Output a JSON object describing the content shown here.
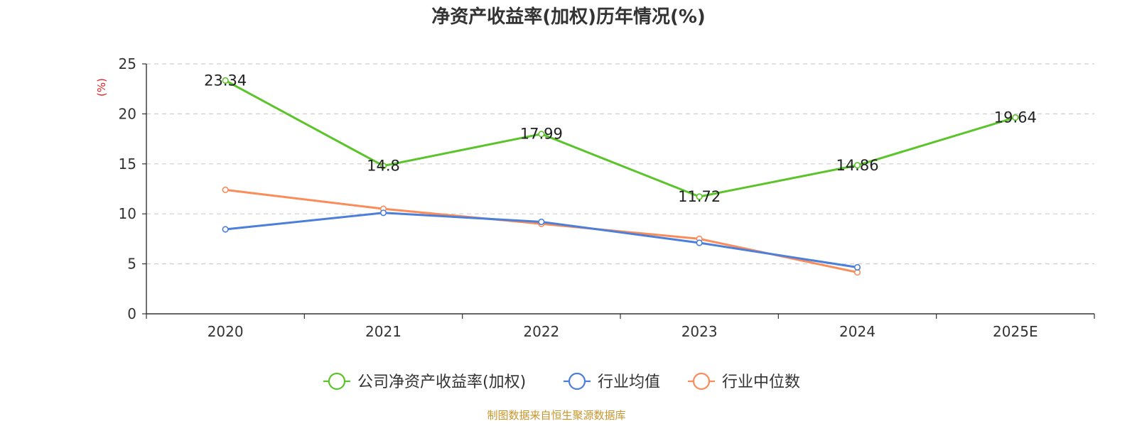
{
  "chart_data": {
    "type": "line",
    "title": "净资产收益率(加权)历年情况(%)",
    "ylabel": "(%)",
    "xlabel": "",
    "ylim": [
      0,
      25
    ],
    "yticks": [
      0,
      5,
      10,
      15,
      20,
      25
    ],
    "grid": true,
    "legend_position": "bottom",
    "categories": [
      "2020",
      "2021",
      "2022",
      "2023",
      "2024",
      "2025E"
    ],
    "series": [
      {
        "name": "公司净资产收益率(加权)",
        "color": "#5cc42b",
        "values": [
          23.34,
          14.8,
          17.99,
          11.72,
          14.86,
          19.64
        ],
        "labels": [
          "23.34",
          "14.8",
          "17.99",
          "11.72",
          "14.86",
          "19.64"
        ]
      },
      {
        "name": "行业均值",
        "color": "#4b7fd9",
        "values": [
          8.45,
          10.1,
          9.2,
          7.1,
          4.65,
          null
        ]
      },
      {
        "name": "行业中位数",
        "color": "#fa8c5a",
        "values": [
          12.4,
          10.5,
          9.0,
          7.5,
          4.15,
          null
        ]
      }
    ],
    "source": "制图数据来自恒生聚源数据库"
  }
}
